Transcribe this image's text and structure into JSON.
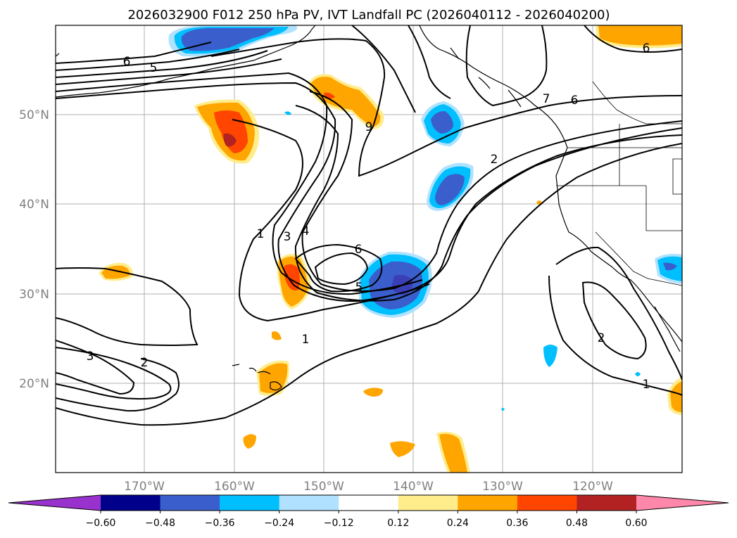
{
  "title": "2026032900 F012 250 hPa PV, IVT Landfall PC (2026040112 - 2026040200)",
  "map": {
    "lon_ticks": [
      "170°W",
      "160°W",
      "150°W",
      "140°W",
      "130°W",
      "120°W"
    ],
    "lat_ticks": [
      "50°N",
      "40°N",
      "30°N",
      "20°N"
    ],
    "contour_labels": [
      "6",
      "5",
      "9",
      "7",
      "6",
      "2",
      "1",
      "3",
      "4",
      "6",
      "5",
      "1",
      "3",
      "2",
      "2",
      "1",
      "6"
    ]
  },
  "colorbar": {
    "ticks": [
      "−0.60",
      "−0.48",
      "−0.36",
      "−0.24",
      "−0.12",
      "0.12",
      "0.24",
      "0.36",
      "0.48",
      "0.60"
    ],
    "colors": [
      "#9932cc",
      "#00008b",
      "#3a5fcd",
      "#00bfff",
      "#b0e2ff",
      "#ffffff",
      "#ffec8b",
      "#ffa500",
      "#ff4500",
      "#b22222",
      "#ff88aa"
    ]
  },
  "chart_data": {
    "type": "map",
    "title": "2026032900 F012 250 hPa PV, IVT Landfall PC (2026040112 - 2026040200)",
    "fields": [
      "250 hPa PV (contours)",
      "IVT Landfall PC (filled)"
    ],
    "lon_range": [
      -180,
      -110
    ],
    "lat_range": [
      10,
      60
    ],
    "contour_levels": [
      1,
      2,
      3,
      4,
      5,
      6,
      7,
      9
    ],
    "colorbar_levels": [
      -0.6,
      -0.48,
      -0.36,
      -0.24,
      -0.12,
      0.12,
      0.24,
      0.36,
      0.48,
      0.6
    ]
  }
}
